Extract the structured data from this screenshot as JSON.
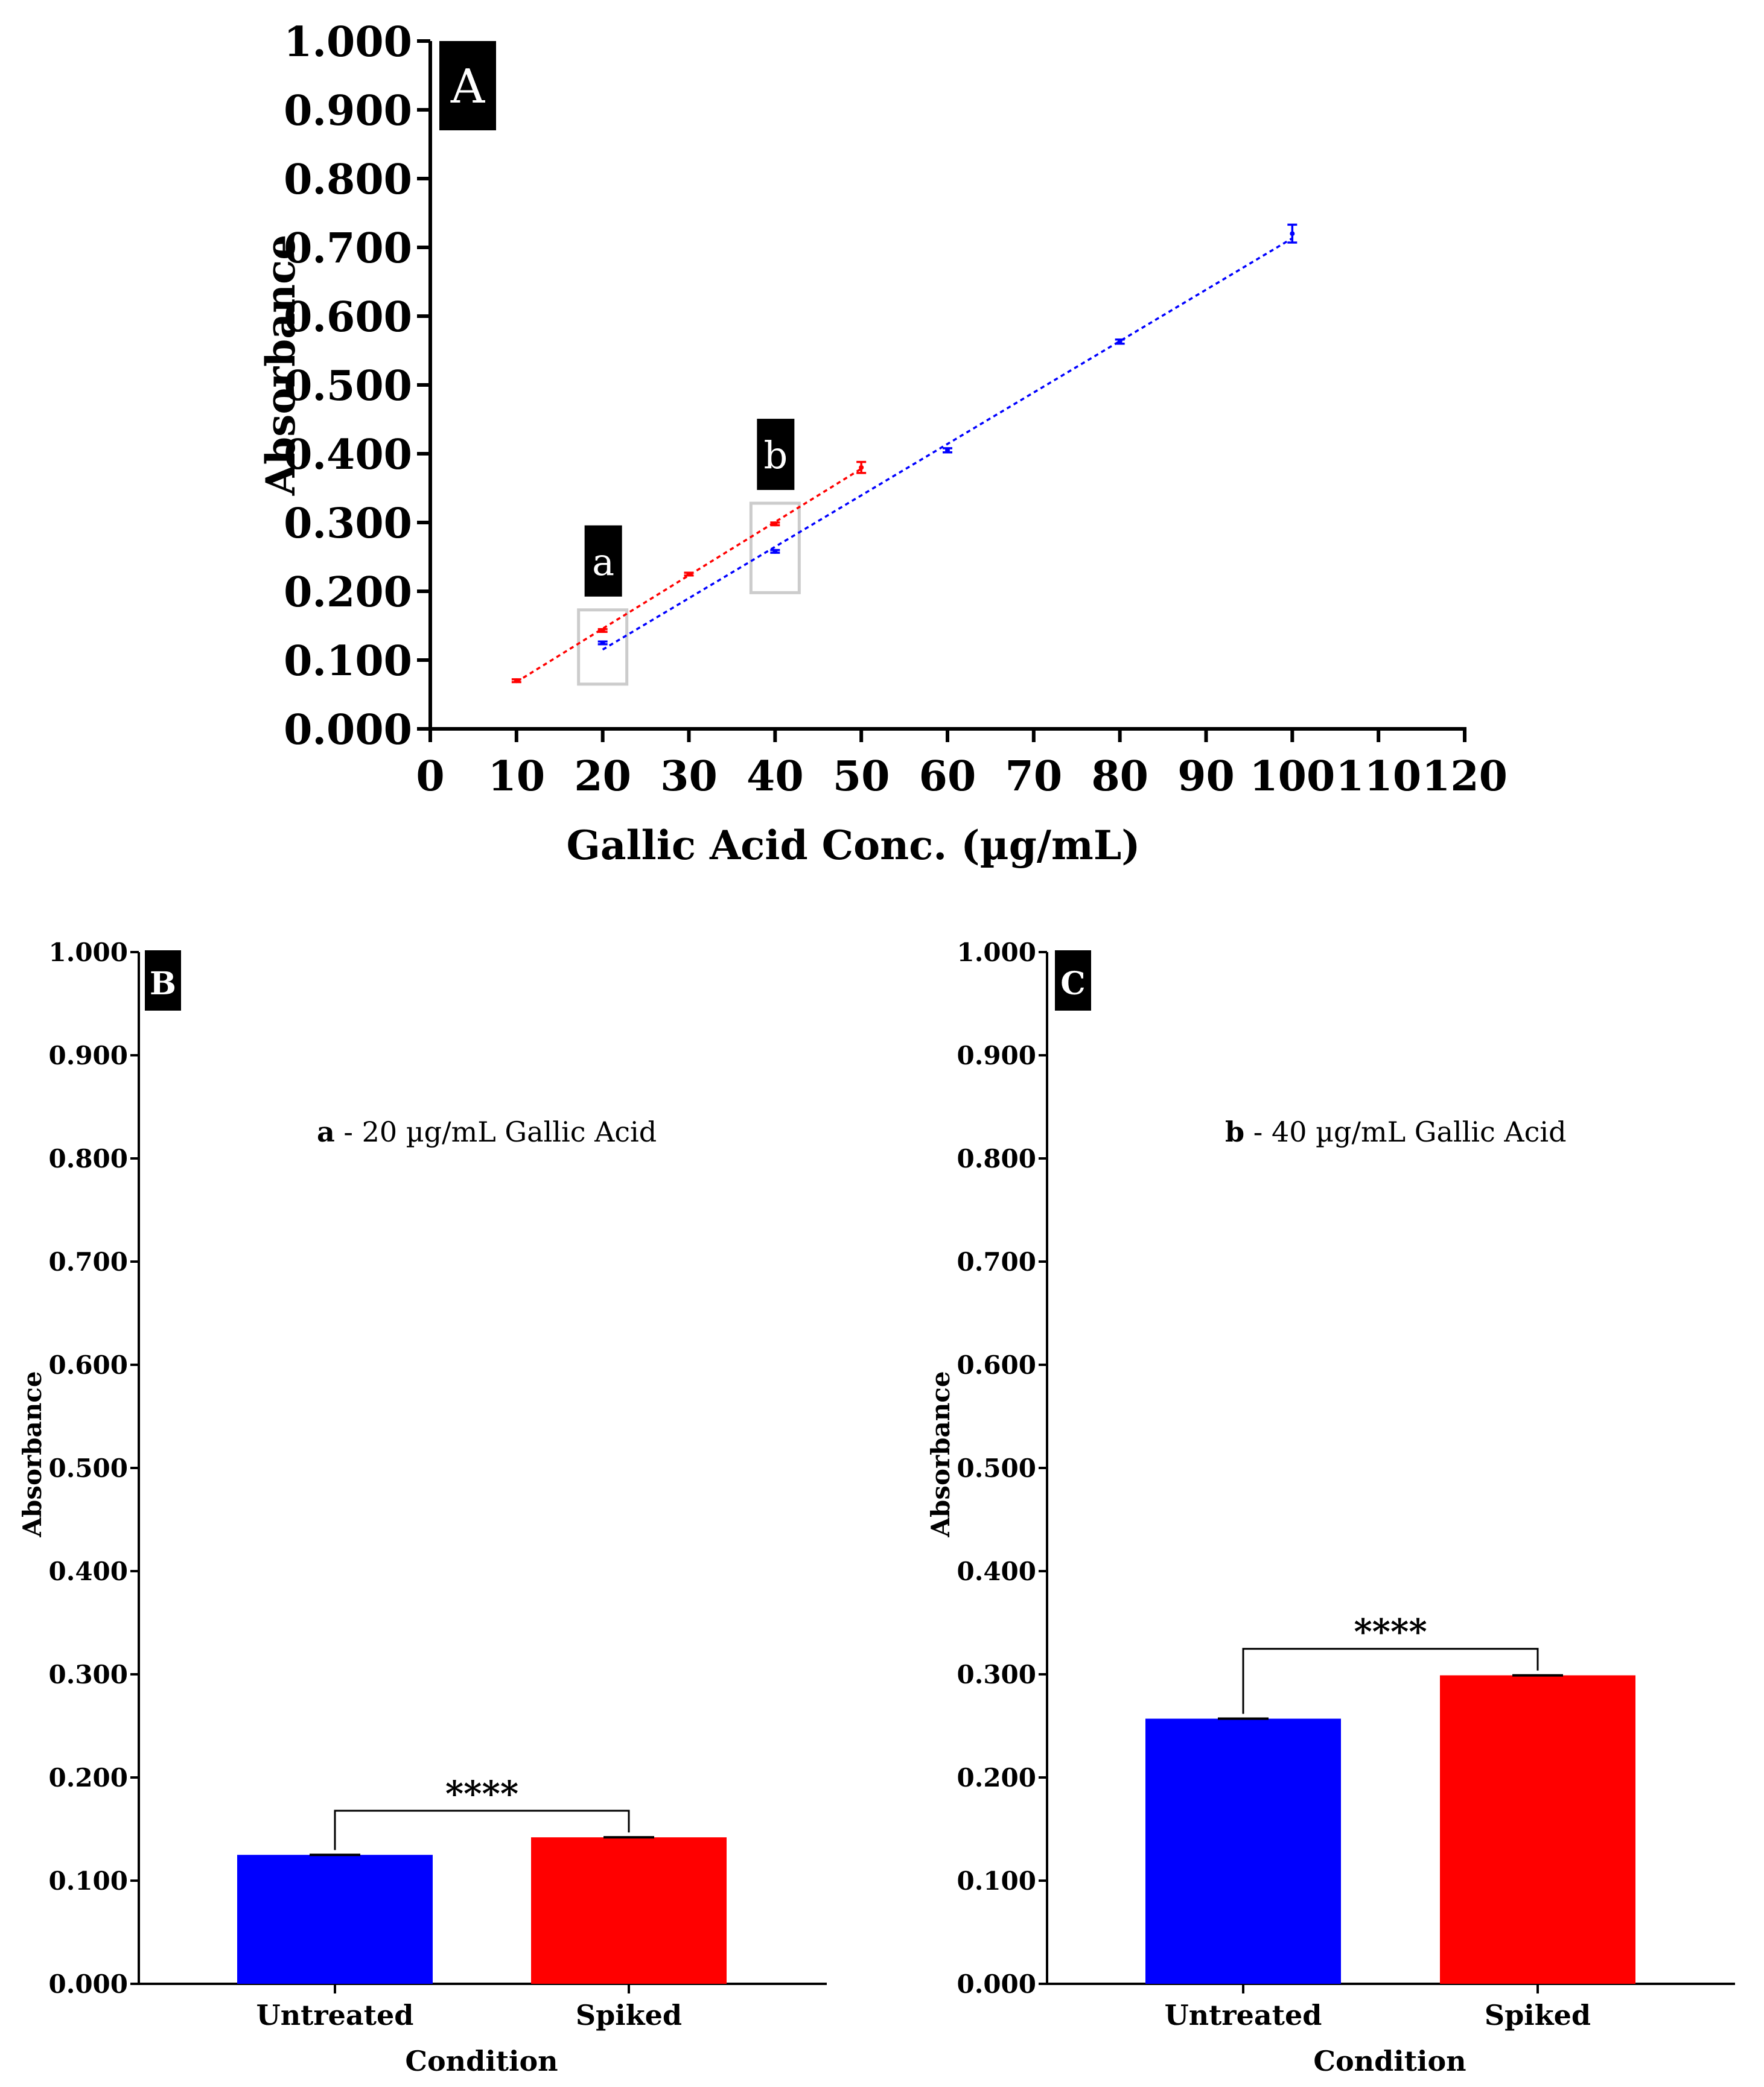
{
  "colors": {
    "untreated": "#0000ff",
    "spiked": "#ff0000",
    "axis": "#000000",
    "badge": "#000000",
    "box": "#cccccc"
  },
  "chart_data": [
    {
      "id": "A",
      "type": "line",
      "panel_label": "A",
      "xlabel": "Gallic Acid Conc. (µg/mL)",
      "ylabel": "Absorbance",
      "xlim": [
        0,
        120
      ],
      "ylim": [
        0,
        1.0
      ],
      "x_ticks": [
        "0",
        "10",
        "20",
        "30",
        "40",
        "50",
        "60",
        "70",
        "80",
        "90",
        "100",
        "110",
        "120"
      ],
      "y_ticks": [
        "0.000",
        "0.100",
        "0.200",
        "0.300",
        "0.400",
        "0.500",
        "0.600",
        "0.700",
        "0.800",
        "0.900",
        "1.000"
      ],
      "series": [
        {
          "name": "Spiked",
          "color": "#ff0000",
          "x": [
            10,
            20,
            30,
            40,
            50
          ],
          "y": [
            0.07,
            0.143,
            0.225,
            0.298,
            0.38
          ],
          "err": [
            0.002,
            0.002,
            0.002,
            0.002,
            0.008
          ]
        },
        {
          "name": "Untreated",
          "color": "#0000ff",
          "x": [
            20,
            40,
            60,
            80,
            100
          ],
          "y": [
            0.125,
            0.258,
            0.405,
            0.563,
            0.72
          ],
          "err": [
            0.002,
            0.002,
            0.003,
            0.003,
            0.013
          ]
        }
      ],
      "annotations": [
        {
          "label": "a",
          "x": 20
        },
        {
          "label": "b",
          "x": 40
        }
      ]
    },
    {
      "id": "B",
      "type": "bar",
      "panel_label": "B",
      "title_prefix": "a",
      "title": " - 20 µg/mL Gallic  Acid",
      "xlabel": "Condition",
      "ylabel": "Absorbance",
      "ylim": [
        0,
        1.0
      ],
      "y_ticks": [
        "0.000",
        "0.100",
        "0.200",
        "0.300",
        "0.400",
        "0.500",
        "0.600",
        "0.700",
        "0.800",
        "0.900",
        "1.000"
      ],
      "categories": [
        "Untreated",
        "Spiked"
      ],
      "values": [
        0.125,
        0.142
      ],
      "colors": [
        "#0000ff",
        "#ff0000"
      ],
      "significance": "****"
    },
    {
      "id": "C",
      "type": "bar",
      "panel_label": "C",
      "title_prefix": "b",
      "title": " - 40 µg/mL Gallic  Acid",
      "xlabel": "Condition",
      "ylabel": "Absorbance",
      "ylim": [
        0,
        1.0
      ],
      "y_ticks": [
        "0.000",
        "0.100",
        "0.200",
        "0.300",
        "0.400",
        "0.500",
        "0.600",
        "0.700",
        "0.800",
        "0.900",
        "1.000"
      ],
      "categories": [
        "Untreated",
        "Spiked"
      ],
      "values": [
        0.257,
        0.299
      ],
      "colors": [
        "#0000ff",
        "#ff0000"
      ],
      "significance": "****"
    }
  ]
}
